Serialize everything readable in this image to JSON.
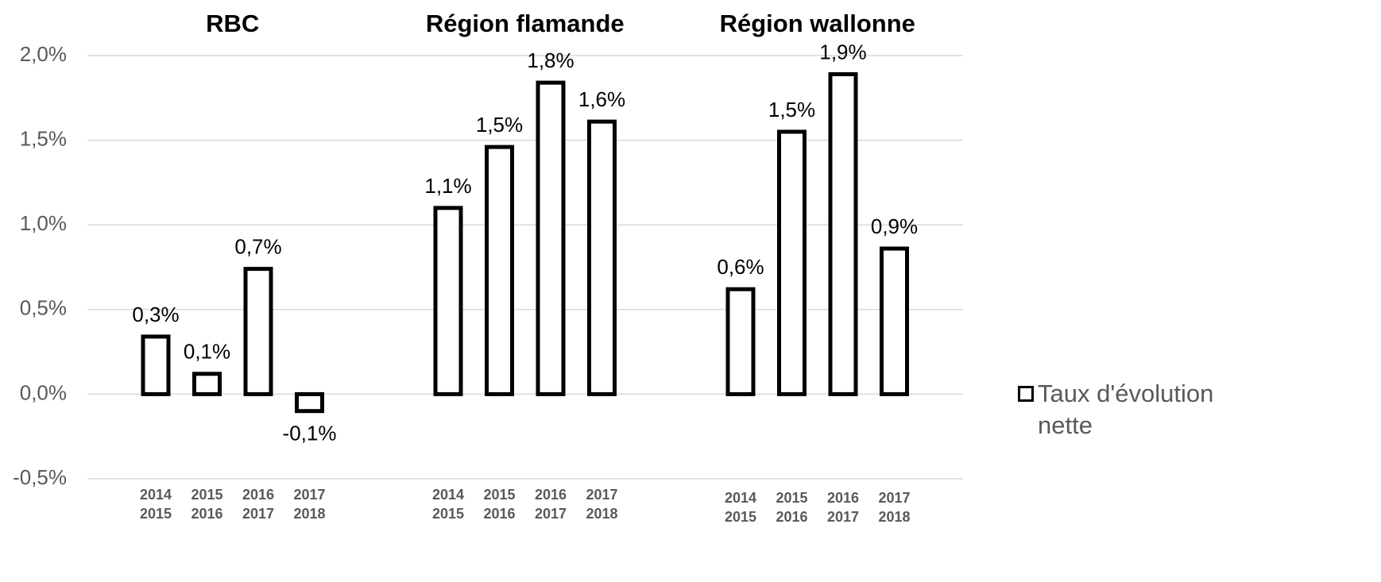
{
  "chart_data": {
    "type": "bar",
    "ylim": [
      -0.5,
      2.0
    ],
    "yticks": [
      {
        "value": -0.5,
        "label": "-0,5%"
      },
      {
        "value": 0,
        "label": "0,0%"
      },
      {
        "value": 0.5,
        "label": "0,5%"
      },
      {
        "value": 1.0,
        "label": "1,0%"
      },
      {
        "value": 1.5,
        "label": "1,5%"
      },
      {
        "value": 2.0,
        "label": "2,0%"
      }
    ],
    "grid": true,
    "color": "#ffffff",
    "edge_color": "#000000",
    "legend": {
      "name": "Taux d'évolution nette",
      "position": "right"
    },
    "groups": [
      {
        "title": "RBC",
        "categories": [
          [
            "2014",
            "2015"
          ],
          [
            "2015",
            "2016"
          ],
          [
            "2016",
            "2017"
          ],
          [
            "2017",
            "2018"
          ]
        ],
        "values": [
          0.34,
          0.12,
          0.74,
          -0.1
        ],
        "value_labels": [
          "0,3%",
          "0,1%",
          "0,7%",
          "-0,1%"
        ]
      },
      {
        "title": "Région flamande",
        "categories": [
          [
            "2014",
            "2015"
          ],
          [
            "2015",
            "2016"
          ],
          [
            "2016",
            "2017"
          ],
          [
            "2017",
            "2018"
          ]
        ],
        "values": [
          1.1,
          1.46,
          1.84,
          1.61
        ],
        "value_labels": [
          "1,1%",
          "1,5%",
          "1,8%",
          "1,6%"
        ]
      },
      {
        "title": "Région wallonne",
        "categories": [
          [
            "2014",
            "2015"
          ],
          [
            "2015",
            "2016"
          ],
          [
            "2016",
            "2017"
          ],
          [
            "2017",
            "2018"
          ]
        ],
        "values": [
          0.62,
          1.55,
          1.89,
          0.86
        ],
        "value_labels": [
          "0,6%",
          "1,5%",
          "1,9%",
          "0,9%"
        ]
      }
    ]
  }
}
